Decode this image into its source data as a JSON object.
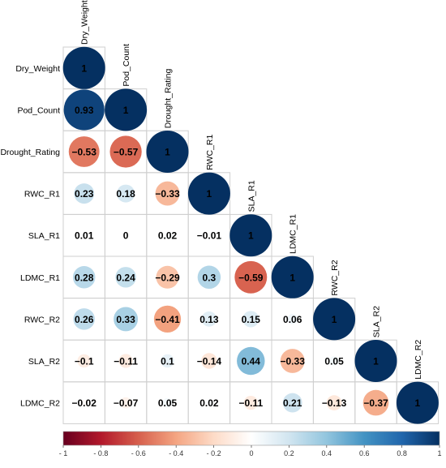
{
  "chart_data": {
    "type": "heatmap",
    "subtype": "correlation-matrix-lower-triangle",
    "title": "",
    "variables": [
      "Dry_Weight",
      "Pod_Count",
      "Drought_Rating",
      "RWC_R1",
      "SLA_R1",
      "LDMC_R1",
      "RWC_R2",
      "SLA_R2",
      "LDMC_R2"
    ],
    "matrix": [
      [
        1
      ],
      [
        0.93,
        1
      ],
      [
        -0.53,
        -0.57,
        1
      ],
      [
        0.23,
        0.18,
        -0.33,
        1
      ],
      [
        0.01,
        0,
        0.02,
        -0.01,
        1
      ],
      [
        0.28,
        0.24,
        -0.29,
        0.3,
        -0.59,
        1
      ],
      [
        0.26,
        0.33,
        -0.41,
        0.13,
        0.15,
        0.06,
        1
      ],
      [
        -0.1,
        -0.11,
        0.1,
        -0.14,
        0.44,
        -0.33,
        0.05,
        1
      ],
      [
        -0.02,
        -0.07,
        0.05,
        0.02,
        -0.11,
        0.21,
        -0.13,
        -0.37,
        1
      ]
    ],
    "value_labels": [
      [
        "1"
      ],
      [
        "0.93",
        "1"
      ],
      [
        "−0.53",
        "−0.57",
        "1"
      ],
      [
        "0.23",
        "0.18",
        "−0.33",
        "1"
      ],
      [
        "0.01",
        "0",
        "0.02",
        "−0.01",
        "1"
      ],
      [
        "0.28",
        "0.24",
        "−0.29",
        "0.3",
        "−0.59",
        "1"
      ],
      [
        "0.26",
        "0.33",
        "−0.41",
        "0.13",
        "0.15",
        "0.06",
        "1"
      ],
      [
        "−0.1",
        "−0.11",
        "0.1",
        "−0.14",
        "0.44",
        "−0.33",
        "0.05",
        "1"
      ],
      [
        "−0.02",
        "−0.07",
        "0.05",
        "0.02",
        "−0.11",
        "0.21",
        "−0.13",
        "−0.37",
        "1"
      ]
    ],
    "colorbar": {
      "range": [
        -1,
        1
      ],
      "ticks": [
        -1,
        -0.8,
        -0.6,
        -0.4,
        -0.2,
        0,
        0.2,
        0.4,
        0.6,
        0.8,
        1
      ],
      "tick_labels": [
        "- 1",
        "- 0.8",
        "- 0.6",
        "- 0.4",
        "- 0.2",
        "0",
        "0.2",
        "0.4",
        "0.6",
        "0.8",
        "1"
      ],
      "placement": "bottom",
      "colors": [
        "#67001f",
        "#b2182b",
        "#d6604d",
        "#f4a582",
        "#fddbc7",
        "#ffffff",
        "#d1e5f0",
        "#92c5de",
        "#4393c3",
        "#2166ac",
        "#053061"
      ]
    },
    "grid": true,
    "marker": "circle-size-and-color-by-value"
  }
}
